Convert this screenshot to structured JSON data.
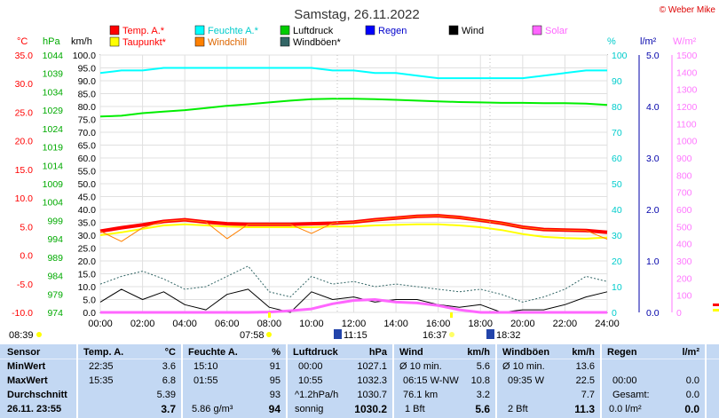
{
  "chart_data": {
    "type": "line",
    "title": "Samstag, 26.11.2022",
    "credit": "© Weber Mike",
    "x_ticks": [
      "00:00",
      "02:00",
      "04:00",
      "06:00",
      "08:00",
      "10:00",
      "12:00",
      "14:00",
      "16:00",
      "18:00",
      "20:00",
      "22:00",
      "24:00"
    ],
    "axes": {
      "temp_c": {
        "label": "°C",
        "color": "#ff0000",
        "ticks": [
          "35.0",
          "30.0",
          "25.0",
          "20.0",
          "15.0",
          "10.0",
          "5.0",
          "0.0",
          "-5.0",
          "-10.0"
        ]
      },
      "pressure_hpa": {
        "label": "hPa",
        "color": "#00aa00",
        "ticks": [
          "1044",
          "1039",
          "1034",
          "1029",
          "1024",
          "1019",
          "1014",
          "1009",
          "1004",
          "999",
          "994",
          "989",
          "984",
          "979",
          "974"
        ]
      },
      "wind_kmh": {
        "label": "km/h",
        "color": "#000000",
        "ticks": [
          "100.0",
          "95.0",
          "90.0",
          "85.0",
          "80.0",
          "75.0",
          "70.0",
          "65.0",
          "60.0",
          "55.0",
          "50.0",
          "45.0",
          "40.0",
          "35.0",
          "30.0",
          "25.0",
          "20.0",
          "15.0",
          "10.0",
          "5.0",
          "0.0"
        ]
      },
      "humidity_pct": {
        "label": "%",
        "color": "#00cccc",
        "ticks": [
          "100",
          "90",
          "80",
          "70",
          "60",
          "50",
          "40",
          "30",
          "20",
          "10",
          "0"
        ]
      },
      "rain_lm2": {
        "label": "l/m²",
        "color": "#0000aa",
        "ticks": [
          "5.0",
          "4.0",
          "3.0",
          "2.0",
          "1.0",
          "0.0"
        ]
      },
      "solar_wm2": {
        "label": "W/m²",
        "color": "#ff77ff",
        "ticks": [
          "1500",
          "1400",
          "1300",
          "1200",
          "1100",
          "1000",
          "900",
          "800",
          "700",
          "600",
          "500",
          "400",
          "300",
          "200",
          "100",
          "0"
        ]
      }
    },
    "legend": [
      {
        "name": "Temp. A.*",
        "color": "#ff0000"
      },
      {
        "name": "Feuchte A.*",
        "color": "#00ffff"
      },
      {
        "name": "Luftdruck",
        "color": "#00cc00"
      },
      {
        "name": "Regen",
        "color": "#0000ff"
      },
      {
        "name": "Wind",
        "color": "#000000"
      },
      {
        "name": "Solar",
        "color": "#ff66ff"
      },
      {
        "name": "Taupunkt*",
        "color": "#ffff00"
      },
      {
        "name": "Windchill",
        "color": "#ff8000"
      },
      {
        "name": "Windböen*",
        "color": "#336666"
      }
    ],
    "x_hours": [
      0,
      1,
      2,
      3,
      4,
      5,
      6,
      7,
      8,
      9,
      10,
      11,
      12,
      13,
      14,
      15,
      16,
      17,
      18,
      19,
      20,
      21,
      22,
      23,
      24
    ],
    "series": [
      {
        "name": "Temp. A.*",
        "axis": "temp_c",
        "color": "#ff0000",
        "width": 4,
        "values": [
          4.2,
          4.8,
          5.3,
          5.9,
          6.2,
          5.8,
          5.5,
          5.4,
          5.4,
          5.4,
          5.5,
          5.6,
          5.8,
          6.2,
          6.5,
          6.8,
          6.9,
          6.6,
          6.1,
          5.6,
          4.9,
          4.5,
          4.4,
          4.3,
          4.0
        ]
      },
      {
        "name": "Taupunkt*",
        "axis": "temp_c",
        "color": "#ffff00",
        "width": 2,
        "values": [
          3.5,
          4.0,
          4.6,
          5.2,
          5.4,
          5.2,
          5.0,
          4.9,
          4.9,
          4.9,
          4.9,
          5.0,
          5.0,
          5.2,
          5.3,
          5.4,
          5.4,
          5.2,
          4.9,
          4.4,
          3.7,
          3.2,
          3.0,
          2.9,
          3.1
        ]
      },
      {
        "name": "Windchill",
        "axis": "temp_c",
        "color": "#ff8000",
        "width": 1,
        "values": [
          4.2,
          2.4,
          4.8,
          5.9,
          6.2,
          5.8,
          2.9,
          5.4,
          5.4,
          5.4,
          3.8,
          5.6,
          5.8,
          6.2,
          6.5,
          6.8,
          6.9,
          6.6,
          6.1,
          5.6,
          4.9,
          4.5,
          4.4,
          4.3,
          2.8
        ]
      },
      {
        "name": "Feuchte A.*",
        "axis": "humidity_pct",
        "color": "#00ffff",
        "width": 2,
        "values": [
          93,
          94,
          94,
          95,
          95,
          95,
          95,
          95,
          95,
          95,
          95,
          94,
          94,
          93,
          93,
          92,
          91,
          91,
          91,
          91,
          91,
          92,
          93,
          94,
          94
        ]
      },
      {
        "name": "Luftdruck",
        "axis": "pressure_hpa",
        "color": "#00ee00",
        "width": 2,
        "values": [
          1027.3,
          1027.5,
          1028.2,
          1028.6,
          1029.0,
          1029.6,
          1030.2,
          1030.6,
          1031.1,
          1031.6,
          1032.0,
          1032.1,
          1032.1,
          1032.0,
          1031.8,
          1031.6,
          1031.4,
          1031.2,
          1031.1,
          1031.0,
          1031.0,
          1030.9,
          1030.9,
          1030.8,
          1030.4
        ]
      },
      {
        "name": "Windböen*",
        "axis": "wind_kmh",
        "color": "#336666",
        "width": 1,
        "dashed": true,
        "values": [
          11.0,
          14.0,
          16.0,
          13.0,
          9.0,
          10.0,
          14.0,
          18.0,
          8.0,
          6.0,
          14.0,
          11.0,
          12.0,
          10.0,
          11.0,
          10.0,
          9.0,
          8.0,
          9.0,
          7.0,
          4.0,
          6.0,
          9.0,
          14.0,
          12.0
        ]
      },
      {
        "name": "Wind",
        "axis": "wind_kmh",
        "color": "#000000",
        "width": 1,
        "values": [
          4.0,
          9.0,
          5.0,
          8.0,
          3.0,
          1.0,
          7.0,
          9.0,
          2.0,
          0.0,
          8.0,
          5.0,
          6.0,
          4.0,
          5.0,
          5.0,
          3.0,
          2.0,
          3.0,
          0.0,
          1.0,
          1.0,
          3.0,
          6.0,
          8.0
        ]
      },
      {
        "name": "Solar",
        "axis": "solar_wm2",
        "color": "#ff66ff",
        "width": 3,
        "values": [
          0,
          0,
          0,
          0,
          0,
          0,
          0,
          0,
          2,
          10,
          20,
          50,
          70,
          75,
          60,
          55,
          40,
          15,
          0,
          0,
          0,
          0,
          0,
          0,
          0
        ]
      }
    ],
    "markers": {
      "sunrise_left": "08:39",
      "sunset_left": "07:58",
      "moon1": "11:15",
      "moon2": "16:37",
      "moon3": "18:32"
    }
  },
  "summary": {
    "sensor": {
      "header": "Sensor",
      "rows": [
        "MinWert",
        "MaxWert",
        "Durchschnitt",
        "26.11. 23:55"
      ]
    },
    "temp": {
      "header": "Temp. A.",
      "unit": "°C",
      "rows": [
        [
          "22:35",
          "3.6"
        ],
        [
          "15:35",
          "6.8"
        ],
        [
          "",
          "5.39"
        ],
        [
          "",
          "3.7"
        ]
      ]
    },
    "humidity": {
      "header": "Feuchte A.",
      "unit": "%",
      "rows": [
        [
          "15:10",
          "91"
        ],
        [
          "01:55",
          "95"
        ],
        [
          "",
          "93"
        ],
        [
          "5.86 g/m³",
          "94"
        ]
      ]
    },
    "pressure": {
      "header": "Luftdruck",
      "unit": "hPa",
      "rows": [
        [
          "00:00",
          "1027.1"
        ],
        [
          "10:55",
          "1032.3"
        ],
        [
          "^1.2hPa/h",
          "1030.7"
        ],
        [
          "sonnig",
          "1030.2"
        ]
      ]
    },
    "wind": {
      "header": "Wind",
      "unit": "km/h",
      "rows": [
        [
          "Ø 10 min.",
          "5.6"
        ],
        [
          "06:15 W-NW",
          "10.8"
        ],
        [
          "76.1 km",
          "3.2"
        ],
        [
          "1 Bft",
          "5.6"
        ]
      ]
    },
    "gusts": {
      "header": "Windböen",
      "unit": "km/h",
      "rows": [
        [
          "Ø 10 min.",
          "13.6"
        ],
        [
          "09:35 W",
          "22.5"
        ],
        [
          "",
          "7.7"
        ],
        [
          "2 Bft",
          "11.3"
        ]
      ]
    },
    "rain": {
      "header": "Regen",
      "unit": "l/m²",
      "rows": [
        [
          "",
          ""
        ],
        [
          "00:00",
          "0.0"
        ],
        [
          "Gesamt:",
          "0.0"
        ],
        [
          "0.0 l/m²",
          "0.0"
        ]
      ]
    }
  }
}
